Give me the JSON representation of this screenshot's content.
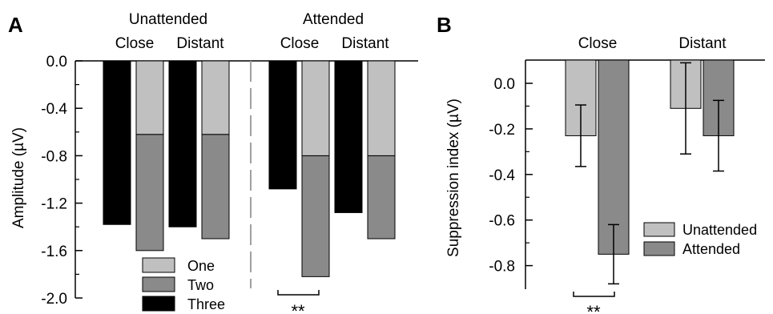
{
  "panel_a": {
    "letter": "A",
    "group_labels": [
      "Unattended",
      "Attended"
    ],
    "condition_labels": [
      "Close",
      "Distant",
      "Close",
      "Distant"
    ],
    "legend": [
      "One",
      "Two",
      "Three"
    ],
    "significance": "**"
  },
  "panel_b": {
    "letter": "B",
    "legend": [
      "Unattended",
      "Attended"
    ],
    "significance": "**"
  },
  "chart_data": [
    {
      "type": "bar",
      "ylabel": "Amplitude (µV)",
      "ylim": [
        -2.0,
        0.0
      ],
      "yticks": [
        "0.0",
        "-0.4",
        "-0.8",
        "-1.2",
        "-1.6",
        "-2.0"
      ],
      "groups": [
        {
          "name": "Unattended",
          "categories": [
            {
              "name": "Close",
              "three": -1.38,
              "stack": {
                "one": -0.62,
                "two": -1.6
              }
            },
            {
              "name": "Distant",
              "three": -1.4,
              "stack": {
                "one": -0.62,
                "two": -1.5
              }
            }
          ]
        },
        {
          "name": "Attended",
          "categories": [
            {
              "name": "Close",
              "three": -1.08,
              "stack": {
                "one": -0.8,
                "two": -1.82
              }
            },
            {
              "name": "Distant",
              "three": -1.28,
              "stack": {
                "one": -0.8,
                "two": -1.5
              }
            }
          ]
        }
      ],
      "series_colors": {
        "One": "#c0c0c0",
        "Two": "#8a8a8a",
        "Three": "#000000"
      },
      "legend_position": "bottom-left",
      "annotations": [
        {
          "text": "**",
          "between": "Attended Close"
        }
      ]
    },
    {
      "type": "bar",
      "ylabel": "Suppression index (µV)",
      "ylim": [
        -0.9,
        0.1
      ],
      "yticks": [
        "0.0",
        "-0.2",
        "-0.4",
        "-0.6",
        "-0.8"
      ],
      "categories": [
        "Close",
        "Distant"
      ],
      "series": [
        {
          "name": "Unattended",
          "values": [
            -0.23,
            -0.11
          ],
          "errors": [
            0.135,
            0.2
          ],
          "color": "#c0c0c0"
        },
        {
          "name": "Attended",
          "values": [
            -0.75,
            -0.23
          ],
          "errors": [
            0.13,
            0.155
          ],
          "color": "#8a8a8a"
        }
      ],
      "legend_position": "bottom-right",
      "annotations": [
        {
          "text": "**",
          "between": "Close"
        }
      ]
    }
  ]
}
